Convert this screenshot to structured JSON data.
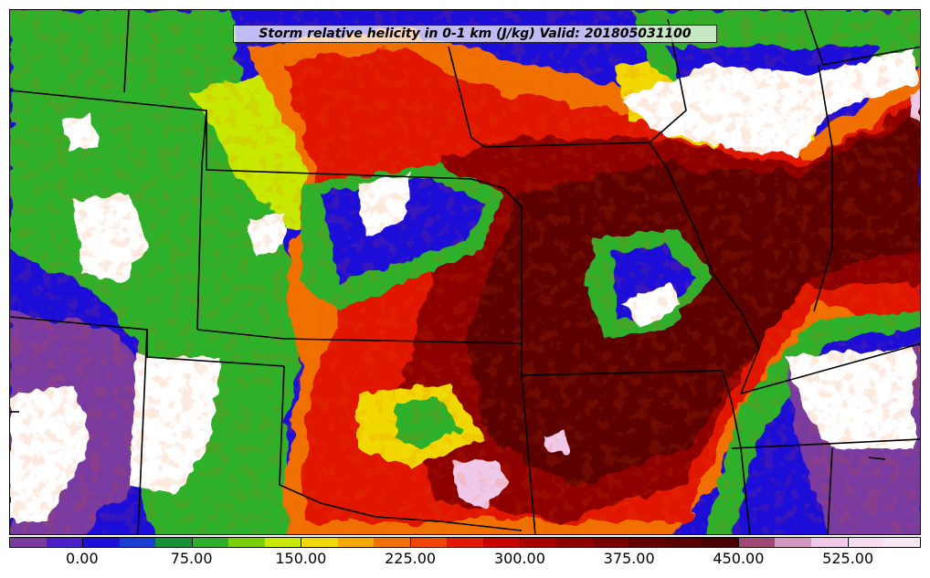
{
  "title": "Storm relative helicity in 0-1 km (J/kg) Valid: 201805031100",
  "colorbar": {
    "colors": [
      "#7a3aa0",
      "#4a1fc8",
      "#1e10d8",
      "#1a3fd0",
      "#149038",
      "#2fb02a",
      "#78d000",
      "#c8e800",
      "#f0d800",
      "#f7a800",
      "#f07000",
      "#f04400",
      "#e01800",
      "#c80000",
      "#a80000",
      "#8c0000",
      "#780000",
      "#660000",
      "#560000",
      "#4a0000",
      "#a24878",
      "#d498c0",
      "#f0c8e8",
      "#f8dcf2",
      "#fbe8f7"
    ],
    "tick_labels": [
      "0.00",
      "75.00",
      "150.00",
      "225.00",
      "300.00",
      "375.00",
      "450.00",
      "525.00"
    ],
    "tick_positions_note": "fraction along bar"
  },
  "map_colors": {
    "white_region": "#ffffff",
    "purple": "#7a3aa0",
    "blue": "#1e10d8",
    "green": "#2fb02a",
    "yellow": "#f0d800",
    "orange": "#f07000",
    "red": "#e01800",
    "darkred": "#8c0000",
    "maroon": "#5c0000",
    "pink": "#f0c8e8"
  }
}
